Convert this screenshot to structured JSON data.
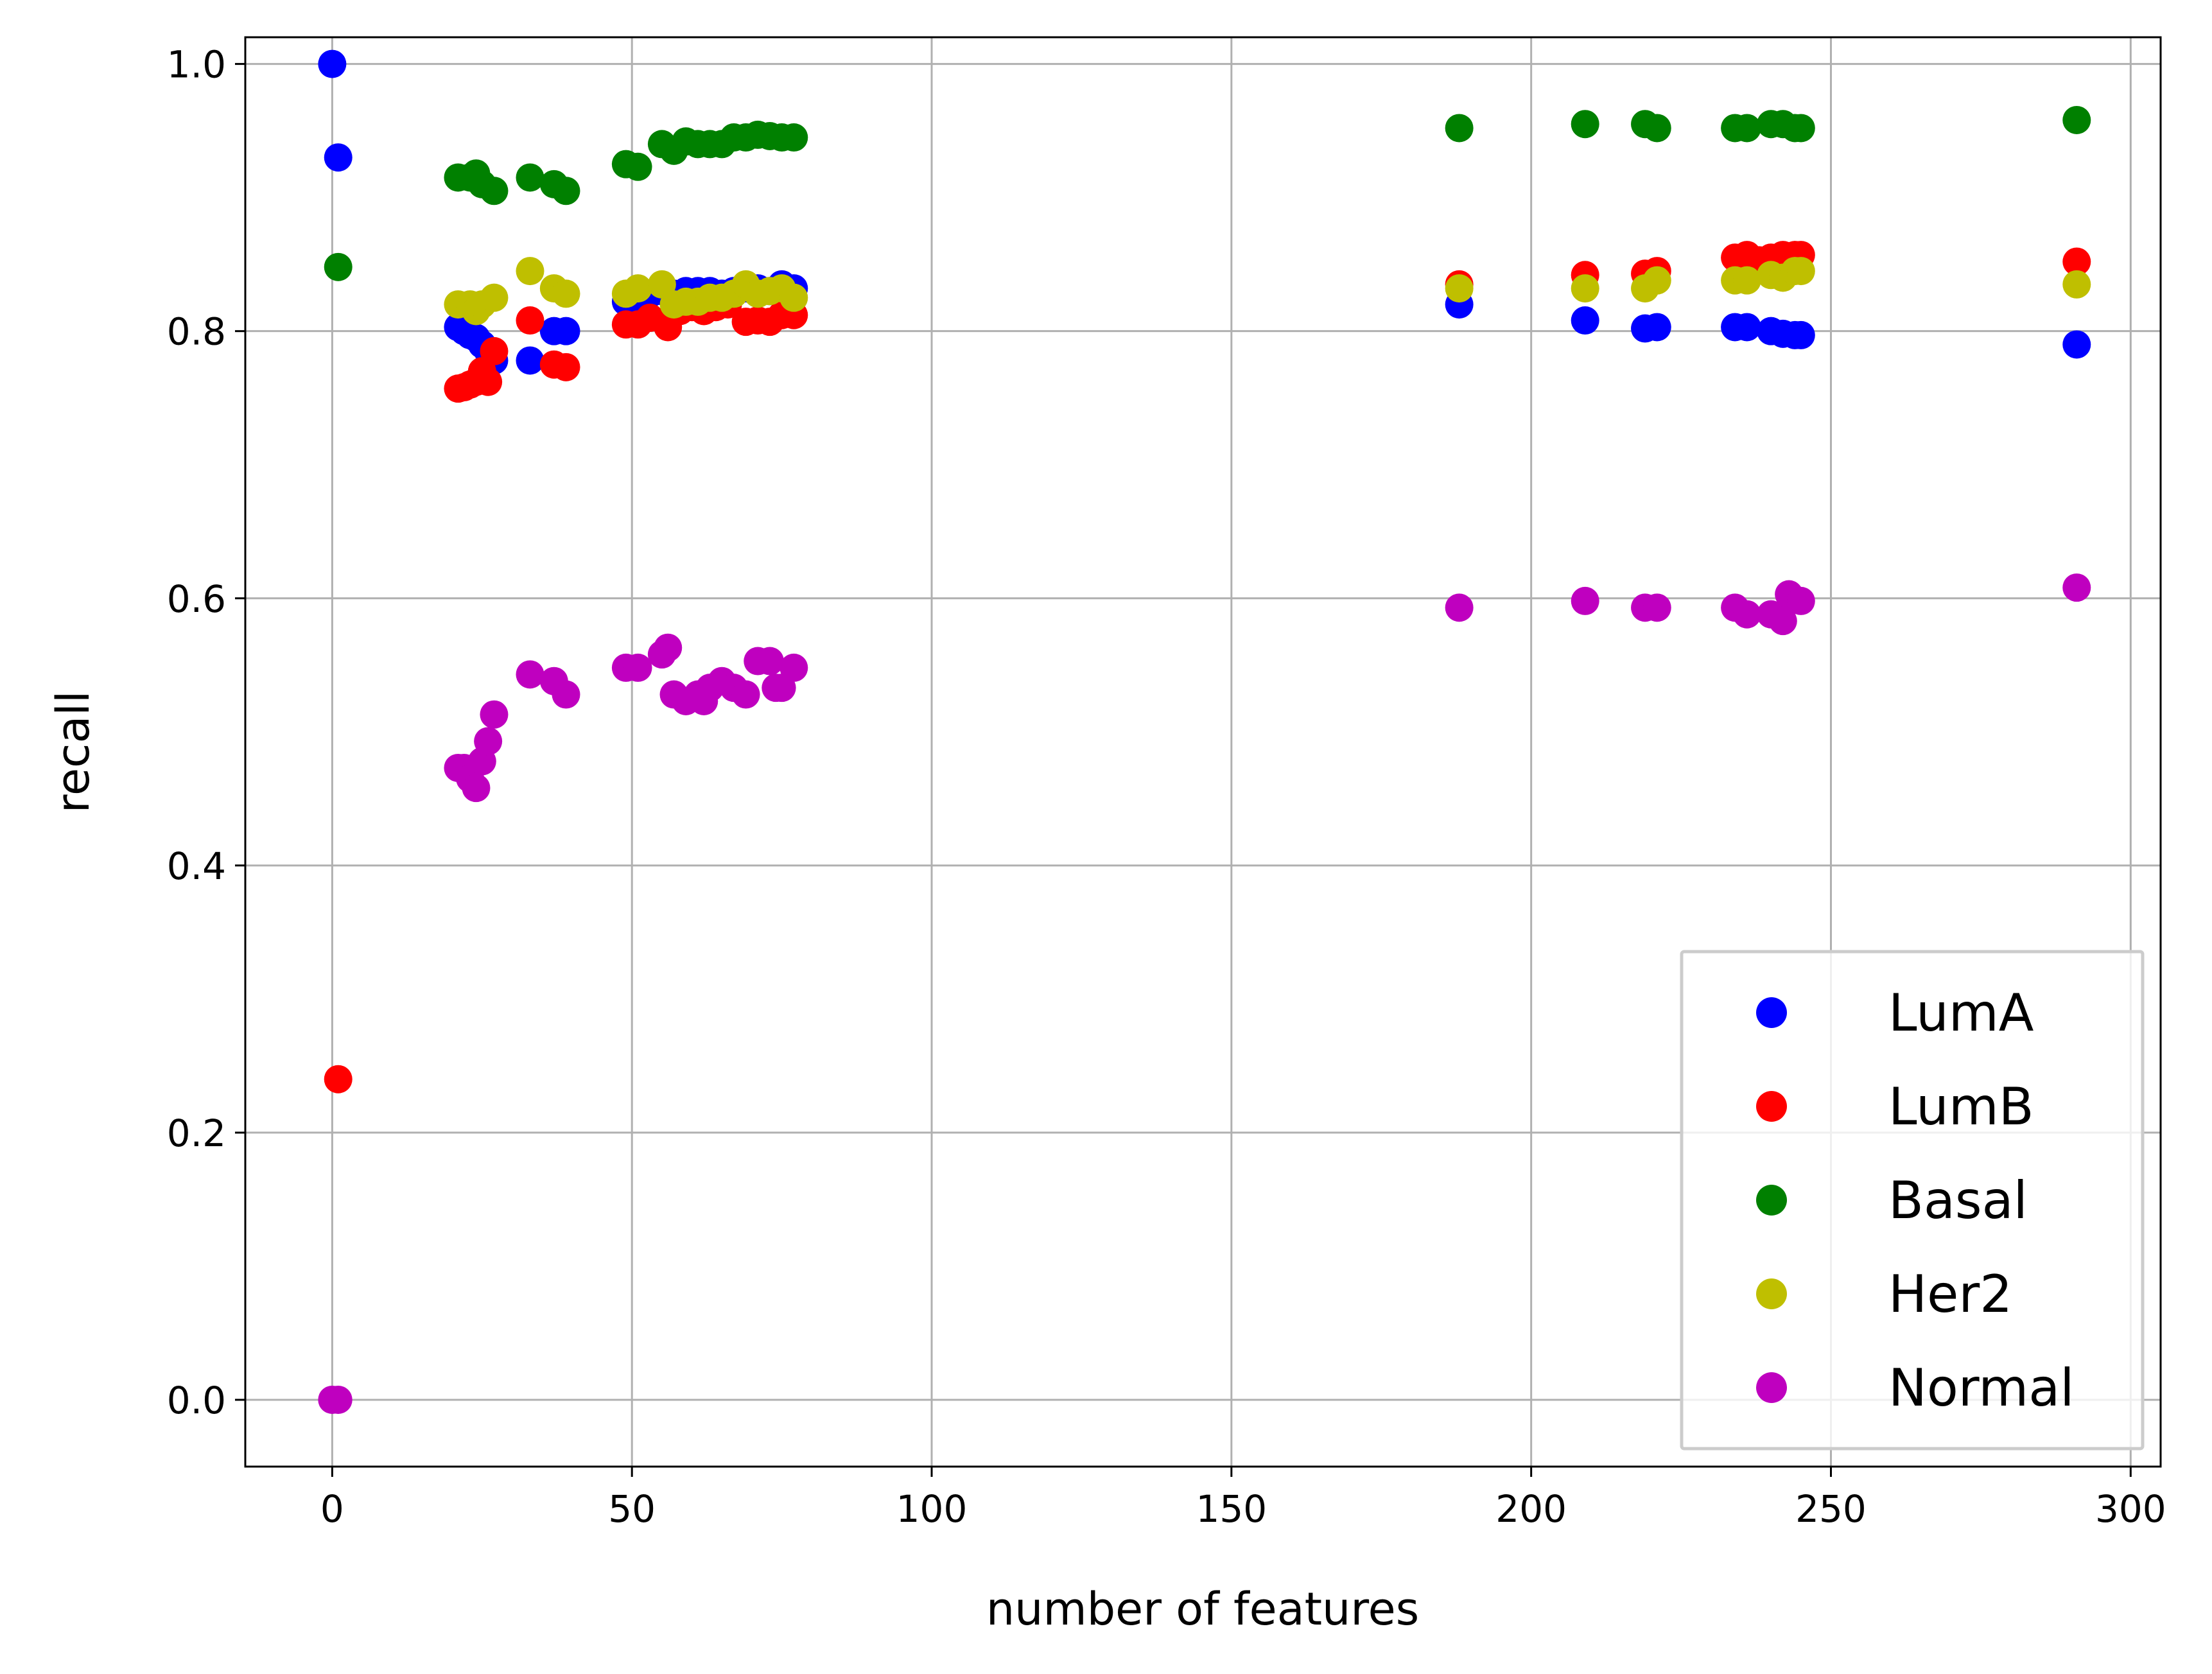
{
  "chart_data": {
    "type": "scatter",
    "title": "",
    "xlabel": "number of features",
    "ylabel": "recall",
    "xlim": [
      -14.5,
      305
    ],
    "ylim": [
      -0.05,
      1.02
    ],
    "xticks": [
      0,
      50,
      100,
      150,
      200,
      250,
      300
    ],
    "xtick_labels": [
      "0",
      "50",
      "100",
      "150",
      "200",
      "250",
      "300"
    ],
    "yticks": [
      0.0,
      0.2,
      0.4,
      0.6,
      0.8,
      1.0
    ],
    "ytick_labels": [
      "0.0",
      "0.2",
      "0.4",
      "0.6",
      "0.8",
      "1.0"
    ],
    "grid": true,
    "legend_position": "lower-right",
    "series": [
      {
        "name": "LumA",
        "color": "#0000ff",
        "points": [
          [
            0,
            1.0
          ],
          [
            1,
            0.93
          ],
          [
            21,
            0.803
          ],
          [
            22,
            0.8
          ],
          [
            23,
            0.797
          ],
          [
            24,
            0.795
          ],
          [
            25,
            0.79
          ],
          [
            26,
            0.785
          ],
          [
            27,
            0.778
          ],
          [
            33,
            0.778
          ],
          [
            37,
            0.8
          ],
          [
            39,
            0.8
          ],
          [
            49,
            0.822
          ],
          [
            51,
            0.825
          ],
          [
            53,
            0.828
          ],
          [
            55,
            0.83
          ],
          [
            57,
            0.828
          ],
          [
            59,
            0.83
          ],
          [
            61,
            0.83
          ],
          [
            63,
            0.83
          ],
          [
            65,
            0.828
          ],
          [
            67,
            0.83
          ],
          [
            69,
            0.832
          ],
          [
            71,
            0.832
          ],
          [
            73,
            0.83
          ],
          [
            75,
            0.835
          ],
          [
            77,
            0.832
          ],
          [
            188,
            0.82
          ],
          [
            209,
            0.808
          ],
          [
            219,
            0.802
          ],
          [
            221,
            0.803
          ],
          [
            234,
            0.803
          ],
          [
            236,
            0.803
          ],
          [
            240,
            0.8
          ],
          [
            242,
            0.798
          ],
          [
            244,
            0.797
          ],
          [
            245,
            0.797
          ],
          [
            291,
            0.79
          ]
        ]
      },
      {
        "name": "LumB",
        "color": "#ff0000",
        "points": [
          [
            1,
            0.24
          ],
          [
            21,
            0.757
          ],
          [
            22,
            0.758
          ],
          [
            23,
            0.76
          ],
          [
            24,
            0.762
          ],
          [
            25,
            0.77
          ],
          [
            26,
            0.762
          ],
          [
            27,
            0.785
          ],
          [
            33,
            0.808
          ],
          [
            37,
            0.775
          ],
          [
            39,
            0.773
          ],
          [
            49,
            0.805
          ],
          [
            51,
            0.805
          ],
          [
            53,
            0.81
          ],
          [
            56,
            0.803
          ],
          [
            58,
            0.815
          ],
          [
            60,
            0.818
          ],
          [
            62,
            0.815
          ],
          [
            64,
            0.818
          ],
          [
            66,
            0.82
          ],
          [
            69,
            0.807
          ],
          [
            71,
            0.808
          ],
          [
            73,
            0.807
          ],
          [
            75,
            0.812
          ],
          [
            77,
            0.812
          ],
          [
            188,
            0.835
          ],
          [
            209,
            0.842
          ],
          [
            219,
            0.843
          ],
          [
            221,
            0.845
          ],
          [
            234,
            0.855
          ],
          [
            236,
            0.857
          ],
          [
            238,
            0.853
          ],
          [
            240,
            0.855
          ],
          [
            242,
            0.857
          ],
          [
            244,
            0.857
          ],
          [
            245,
            0.857
          ],
          [
            291,
            0.852
          ]
        ]
      },
      {
        "name": "Basal",
        "color": "#008000",
        "points": [
          [
            1,
            0.848
          ],
          [
            21,
            0.915
          ],
          [
            23,
            0.915
          ],
          [
            24,
            0.918
          ],
          [
            25,
            0.91
          ],
          [
            27,
            0.905
          ],
          [
            33,
            0.915
          ],
          [
            37,
            0.91
          ],
          [
            39,
            0.905
          ],
          [
            49,
            0.925
          ],
          [
            51,
            0.923
          ],
          [
            55,
            0.94
          ],
          [
            57,
            0.935
          ],
          [
            59,
            0.942
          ],
          [
            61,
            0.94
          ],
          [
            63,
            0.94
          ],
          [
            65,
            0.94
          ],
          [
            67,
            0.945
          ],
          [
            69,
            0.945
          ],
          [
            71,
            0.947
          ],
          [
            73,
            0.946
          ],
          [
            75,
            0.945
          ],
          [
            77,
            0.945
          ],
          [
            188,
            0.952
          ],
          [
            209,
            0.955
          ],
          [
            219,
            0.955
          ],
          [
            221,
            0.952
          ],
          [
            234,
            0.952
          ],
          [
            236,
            0.952
          ],
          [
            240,
            0.955
          ],
          [
            242,
            0.955
          ],
          [
            244,
            0.952
          ],
          [
            245,
            0.952
          ],
          [
            291,
            0.958
          ]
        ]
      },
      {
        "name": "Her2",
        "color": "#bfbf00",
        "points": [
          [
            21,
            0.82
          ],
          [
            23,
            0.82
          ],
          [
            24,
            0.815
          ],
          [
            25,
            0.82
          ],
          [
            27,
            0.825
          ],
          [
            33,
            0.845
          ],
          [
            37,
            0.832
          ],
          [
            39,
            0.828
          ],
          [
            49,
            0.828
          ],
          [
            51,
            0.832
          ],
          [
            55,
            0.835
          ],
          [
            57,
            0.82
          ],
          [
            59,
            0.822
          ],
          [
            61,
            0.822
          ],
          [
            63,
            0.825
          ],
          [
            65,
            0.825
          ],
          [
            67,
            0.828
          ],
          [
            69,
            0.835
          ],
          [
            71,
            0.828
          ],
          [
            73,
            0.83
          ],
          [
            75,
            0.832
          ],
          [
            77,
            0.825
          ],
          [
            188,
            0.832
          ],
          [
            209,
            0.832
          ],
          [
            219,
            0.832
          ],
          [
            221,
            0.838
          ],
          [
            234,
            0.838
          ],
          [
            236,
            0.838
          ],
          [
            240,
            0.842
          ],
          [
            242,
            0.84
          ],
          [
            244,
            0.845
          ],
          [
            245,
            0.845
          ],
          [
            291,
            0.835
          ]
        ]
      },
      {
        "name": "Normal",
        "color": "#bf00bf",
        "points": [
          [
            0,
            0.0
          ],
          [
            1,
            0.0
          ],
          [
            21,
            0.473
          ],
          [
            22,
            0.473
          ],
          [
            23,
            0.465
          ],
          [
            24,
            0.458
          ],
          [
            25,
            0.478
          ],
          [
            26,
            0.493
          ],
          [
            27,
            0.513
          ],
          [
            33,
            0.543
          ],
          [
            37,
            0.538
          ],
          [
            39,
            0.528
          ],
          [
            49,
            0.548
          ],
          [
            51,
            0.548
          ],
          [
            55,
            0.558
          ],
          [
            56,
            0.563
          ],
          [
            57,
            0.528
          ],
          [
            59,
            0.523
          ],
          [
            61,
            0.528
          ],
          [
            62,
            0.523
          ],
          [
            63,
            0.533
          ],
          [
            65,
            0.538
          ],
          [
            67,
            0.533
          ],
          [
            69,
            0.528
          ],
          [
            71,
            0.553
          ],
          [
            73,
            0.553
          ],
          [
            74,
            0.533
          ],
          [
            75,
            0.533
          ],
          [
            77,
            0.548
          ],
          [
            188,
            0.593
          ],
          [
            209,
            0.598
          ],
          [
            219,
            0.593
          ],
          [
            221,
            0.593
          ],
          [
            234,
            0.593
          ],
          [
            236,
            0.588
          ],
          [
            240,
            0.588
          ],
          [
            242,
            0.583
          ],
          [
            243,
            0.603
          ],
          [
            245,
            0.598
          ],
          [
            291,
            0.608
          ]
        ]
      }
    ]
  }
}
